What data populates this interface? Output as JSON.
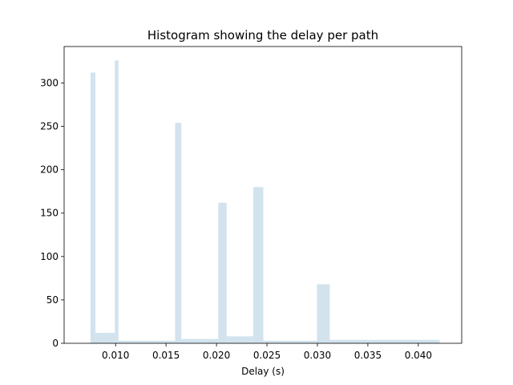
{
  "chart_data": {
    "type": "histogram",
    "title": "Histogram showing the delay per path",
    "xlabel": "Delay (s)",
    "ylabel": "",
    "xlim": [
      0.0049,
      0.0443
    ],
    "ylim": [
      0,
      342
    ],
    "x_ticks": [
      0.01,
      0.015,
      0.02,
      0.025,
      0.03,
      0.035,
      0.04
    ],
    "x_tick_labels": [
      "0.010",
      "0.015",
      "0.020",
      "0.025",
      "0.030",
      "0.035",
      "0.040"
    ],
    "y_ticks": [
      0,
      50,
      100,
      150,
      200,
      250,
      300
    ],
    "y_tick_labels": [
      "0",
      "50",
      "100",
      "150",
      "200",
      "250",
      "300"
    ],
    "bar_color": "#d2e3ee",
    "grid": false,
    "bins": [
      {
        "x0": 0.00752,
        "x1": 0.008,
        "count": 312
      },
      {
        "x0": 0.008,
        "x1": 0.00993,
        "count": 12
      },
      {
        "x0": 0.00993,
        "x1": 0.01029,
        "count": 326
      },
      {
        "x0": 0.01029,
        "x1": 0.0159,
        "count": 3
      },
      {
        "x0": 0.0159,
        "x1": 0.01651,
        "count": 254
      },
      {
        "x0": 0.01651,
        "x1": 0.02017,
        "count": 5
      },
      {
        "x0": 0.02017,
        "x1": 0.02101,
        "count": 162
      },
      {
        "x0": 0.02101,
        "x1": 0.02364,
        "count": 8
      },
      {
        "x0": 0.02364,
        "x1": 0.02464,
        "count": 180
      },
      {
        "x0": 0.02464,
        "x1": 0.02996,
        "count": 3
      },
      {
        "x0": 0.02996,
        "x1": 0.03123,
        "count": 68
      },
      {
        "x0": 0.03123,
        "x1": 0.04211,
        "count": 4
      }
    ]
  }
}
